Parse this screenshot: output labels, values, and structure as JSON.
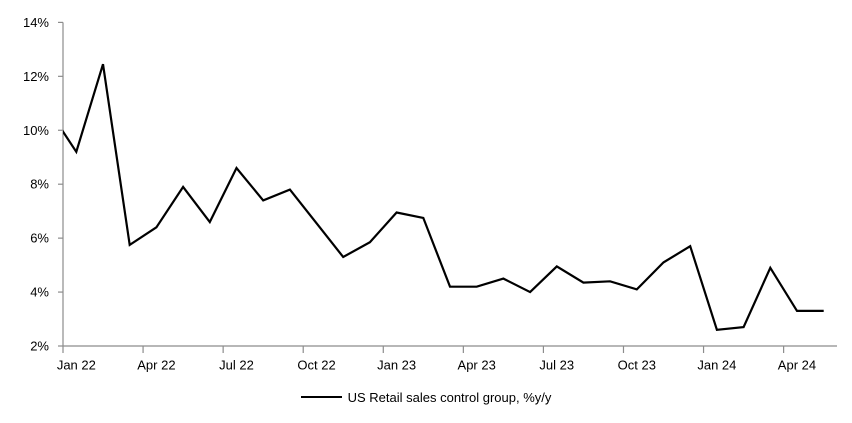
{
  "chart_data": {
    "type": "line",
    "title": "",
    "legend": "US Retail sales control group, %y/y",
    "legend_position": "bottom",
    "grid": false,
    "line_color": "#000000",
    "axis_color": "#8c8c8c",
    "text_color": "#000000",
    "ylim": [
      2,
      14
    ],
    "y_tick_step": 2,
    "y_tick_labels": [
      "2%",
      "4%",
      "6%",
      "8%",
      "10%",
      "12%",
      "14%"
    ],
    "x_tick_labels": [
      "Jan 22",
      "Apr 22",
      "Jul 22",
      "Oct 22",
      "Jan 23",
      "Apr 23",
      "Jul 23",
      "Oct 23",
      "Jan 24",
      "Apr 24"
    ],
    "first_point_clipped_at_left_axis": true,
    "categories": [
      "Dec 21",
      "Jan 22",
      "Feb 22",
      "Mar 22",
      "Apr 22",
      "May 22",
      "Jun 22",
      "Jul 22",
      "Aug 22",
      "Sep 22",
      "Oct 22",
      "Nov 22",
      "Dec 22",
      "Jan 23",
      "Feb 23",
      "Mar 23",
      "Apr 23",
      "May 23",
      "Jun 23",
      "Jul 23",
      "Aug 23",
      "Sep 23",
      "Oct 23",
      "Nov 23",
      "Dec 23",
      "Jan 24",
      "Feb 24",
      "Mar 24",
      "Apr 24",
      "May 24"
    ],
    "values": [
      10.7,
      9.2,
      12.45,
      5.75,
      6.4,
      7.9,
      6.6,
      8.6,
      7.4,
      7.8,
      6.55,
      5.3,
      5.85,
      6.95,
      6.75,
      4.2,
      4.2,
      4.5,
      4.0,
      4.95,
      4.35,
      4.4,
      4.1,
      5.1,
      5.7,
      2.6,
      2.7,
      4.9,
      3.3,
      3.3
    ]
  }
}
